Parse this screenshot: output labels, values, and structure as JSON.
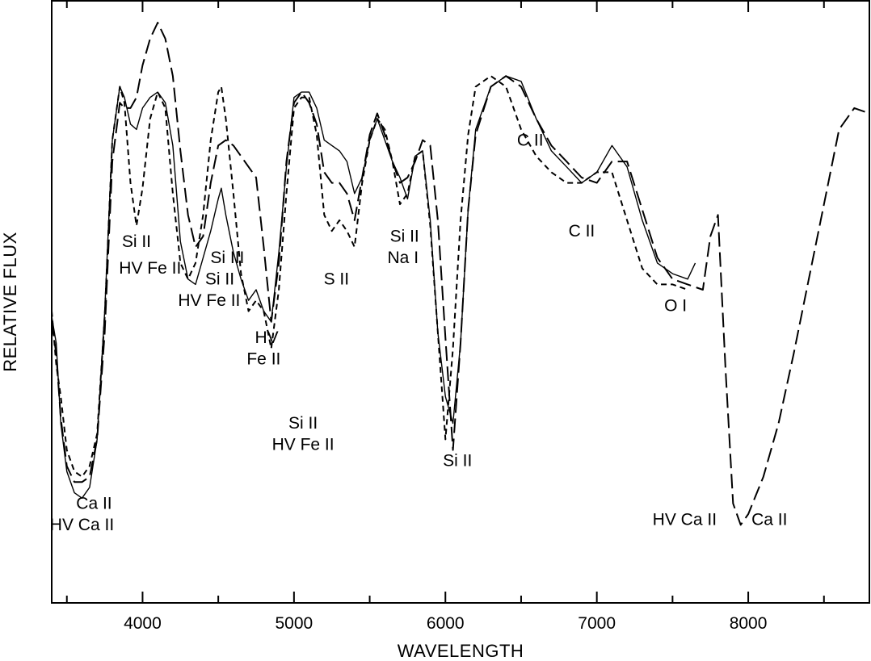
{
  "chart_data": {
    "type": "line",
    "xlabel": "WAVELENGTH",
    "ylabel": "RELATIVE FLUX",
    "xlim": [
      3400,
      8800
    ],
    "ylim": [
      0,
      1.0
    ],
    "x_ticks": [
      4000,
      5000,
      6000,
      7000,
      8000
    ],
    "x_tick_labels": [
      "4000",
      "5000",
      "6000",
      "7000",
      "8000"
    ],
    "x_minor_ticks": [
      3500,
      4000,
      4500,
      5000,
      5500,
      6000,
      6500,
      7000,
      7500,
      8000,
      8500
    ],
    "y_ticks_shown": false,
    "grid": false,
    "series": [
      {
        "line_style": "solid",
        "x": [
          3400,
          3430,
          3460,
          3500,
          3550,
          3600,
          3650,
          3700,
          3750,
          3800,
          3850,
          3880,
          3920,
          3960,
          4000,
          4050,
          4100,
          4150,
          4200,
          4250,
          4300,
          4350,
          4400,
          4450,
          4500,
          4520,
          4550,
          4600,
          4650,
          4700,
          4750,
          4800,
          4850,
          4900,
          4950,
          5000,
          5050,
          5100,
          5150,
          5200,
          5250,
          5300,
          5350,
          5400,
          5450,
          5500,
          5550,
          5600,
          5650,
          5700,
          5750,
          5800,
          5850,
          5900,
          5950,
          6000,
          6050,
          6100,
          6150,
          6200,
          6300,
          6400,
          6500,
          6600,
          6700,
          6800,
          6900,
          7000,
          7100,
          7200,
          7300,
          7400,
          7500,
          7600,
          7650
        ],
        "y": [
          0.45,
          0.4,
          0.25,
          0.16,
          0.12,
          0.11,
          0.13,
          0.22,
          0.46,
          0.78,
          0.88,
          0.86,
          0.81,
          0.8,
          0.84,
          0.86,
          0.87,
          0.85,
          0.77,
          0.59,
          0.52,
          0.51,
          0.56,
          0.61,
          0.67,
          0.69,
          0.64,
          0.57,
          0.52,
          0.48,
          0.5,
          0.46,
          0.44,
          0.57,
          0.73,
          0.86,
          0.87,
          0.87,
          0.84,
          0.78,
          0.77,
          0.76,
          0.74,
          0.68,
          0.71,
          0.78,
          0.82,
          0.78,
          0.74,
          0.71,
          0.67,
          0.75,
          0.76,
          0.63,
          0.42,
          0.3,
          0.25,
          0.4,
          0.65,
          0.8,
          0.88,
          0.9,
          0.89,
          0.82,
          0.76,
          0.73,
          0.7,
          0.72,
          0.77,
          0.73,
          0.63,
          0.55,
          0.53,
          0.52,
          0.55
        ]
      },
      {
        "line_style": "long-dash",
        "x": [
          3400,
          3430,
          3460,
          3500,
          3550,
          3600,
          3650,
          3700,
          3750,
          3800,
          3850,
          3880,
          3920,
          3960,
          4000,
          4050,
          4100,
          4150,
          4200,
          4250,
          4300,
          4350,
          4400,
          4450,
          4500,
          4550,
          4600,
          4650,
          4700,
          4750,
          4800,
          4850,
          4900,
          4950,
          5000,
          5050,
          5100,
          5150,
          5200,
          5250,
          5300,
          5350,
          5400,
          5450,
          5500,
          5550,
          5600,
          5650,
          5700,
          5750,
          5800,
          5850,
          5900,
          5950,
          6000,
          6050,
          6100,
          6150,
          6200,
          6300,
          6400,
          6500,
          6600,
          6700,
          6800,
          6900,
          7000,
          7100,
          7200,
          7300,
          7400,
          7500,
          7600,
          7700,
          7750,
          7800,
          7850,
          7900,
          7950,
          8000,
          8100,
          8200,
          8300,
          8400,
          8500,
          8600,
          8700,
          8800
        ],
        "y": [
          0.44,
          0.38,
          0.26,
          0.17,
          0.14,
          0.14,
          0.15,
          0.22,
          0.42,
          0.74,
          0.85,
          0.84,
          0.84,
          0.86,
          0.92,
          0.97,
          1.0,
          0.97,
          0.9,
          0.76,
          0.64,
          0.58,
          0.6,
          0.7,
          0.77,
          0.78,
          0.77,
          0.75,
          0.73,
          0.71,
          0.58,
          0.44,
          0.55,
          0.74,
          0.85,
          0.87,
          0.85,
          0.81,
          0.72,
          0.7,
          0.7,
          0.68,
          0.63,
          0.71,
          0.79,
          0.83,
          0.79,
          0.74,
          0.7,
          0.71,
          0.74,
          0.78,
          0.77,
          0.63,
          0.41,
          0.2,
          0.4,
          0.65,
          0.79,
          0.88,
          0.9,
          0.88,
          0.82,
          0.77,
          0.74,
          0.71,
          0.7,
          0.74,
          0.74,
          0.65,
          0.56,
          0.52,
          0.51,
          0.5,
          0.6,
          0.64,
          0.35,
          0.1,
          0.06,
          0.08,
          0.15,
          0.25,
          0.38,
          0.52,
          0.66,
          0.8,
          0.84,
          0.83
        ]
      },
      {
        "line_style": "short-dash",
        "x": [
          3400,
          3430,
          3460,
          3500,
          3550,
          3600,
          3650,
          3700,
          3750,
          3800,
          3850,
          3880,
          3920,
          3960,
          4000,
          4050,
          4100,
          4150,
          4200,
          4250,
          4300,
          4350,
          4400,
          4450,
          4500,
          4520,
          4550,
          4600,
          4650,
          4700,
          4750,
          4800,
          4850,
          4900,
          4950,
          5000,
          5050,
          5100,
          5150,
          5200,
          5250,
          5300,
          5350,
          5400,
          5450,
          5500,
          5550,
          5600,
          5650,
          5700,
          5750,
          5800,
          5850,
          5900,
          5950,
          6000,
          6050,
          6100,
          6150,
          6200,
          6300,
          6400,
          6500,
          6600,
          6700,
          6800,
          6900,
          7000,
          7100,
          7200,
          7300,
          7400,
          7500,
          7600
        ],
        "y": [
          0.46,
          0.36,
          0.3,
          0.2,
          0.16,
          0.15,
          0.17,
          0.23,
          0.45,
          0.78,
          0.88,
          0.85,
          0.7,
          0.62,
          0.69,
          0.82,
          0.87,
          0.84,
          0.68,
          0.55,
          0.52,
          0.55,
          0.64,
          0.78,
          0.87,
          0.88,
          0.82,
          0.68,
          0.53,
          0.46,
          0.48,
          0.46,
          0.39,
          0.5,
          0.68,
          0.84,
          0.86,
          0.86,
          0.79,
          0.64,
          0.61,
          0.63,
          0.61,
          0.58,
          0.7,
          0.78,
          0.82,
          0.8,
          0.74,
          0.66,
          0.68,
          0.75,
          0.76,
          0.62,
          0.42,
          0.22,
          0.39,
          0.63,
          0.79,
          0.88,
          0.9,
          0.88,
          0.8,
          0.75,
          0.72,
          0.7,
          0.7,
          0.72,
          0.72,
          0.63,
          0.54,
          0.51,
          0.51,
          0.5
        ]
      }
    ],
    "annotations": [
      {
        "text": "Si II",
        "x": 3960,
        "y": 0.58
      },
      {
        "text": "HV Fe II",
        "x": 4050,
        "y": 0.53
      },
      {
        "text": "Si III",
        "x": 4560,
        "y": 0.55
      },
      {
        "text": "Si II",
        "x": 4510,
        "y": 0.51
      },
      {
        "text": "HV Fe II",
        "x": 4440,
        "y": 0.47
      },
      {
        "text": "HV",
        "x": 4820,
        "y": 0.4
      },
      {
        "text": "Fe II",
        "x": 4800,
        "y": 0.36
      },
      {
        "text": "S II",
        "x": 5280,
        "y": 0.51
      },
      {
        "text": "Si II",
        "x": 5730,
        "y": 0.59
      },
      {
        "text": "Na I",
        "x": 5720,
        "y": 0.55
      },
      {
        "text": "Si II",
        "x": 5060,
        "y": 0.24
      },
      {
        "text": "HV Fe II",
        "x": 5060,
        "y": 0.2
      },
      {
        "text": "Si II",
        "x": 6080,
        "y": 0.17
      },
      {
        "text": "C II",
        "x": 6560,
        "y": 0.77
      },
      {
        "text": "C II",
        "x": 6900,
        "y": 0.6
      },
      {
        "text": "O I",
        "x": 7520,
        "y": 0.46
      },
      {
        "text": "Ca II",
        "x": 3680,
        "y": 0.09
      },
      {
        "text": "HV Ca II",
        "x": 3600,
        "y": 0.05
      },
      {
        "text": "HV Ca II",
        "x": 7580,
        "y": 0.06
      },
      {
        "text": "Ca II",
        "x": 8140,
        "y": 0.06
      }
    ]
  }
}
